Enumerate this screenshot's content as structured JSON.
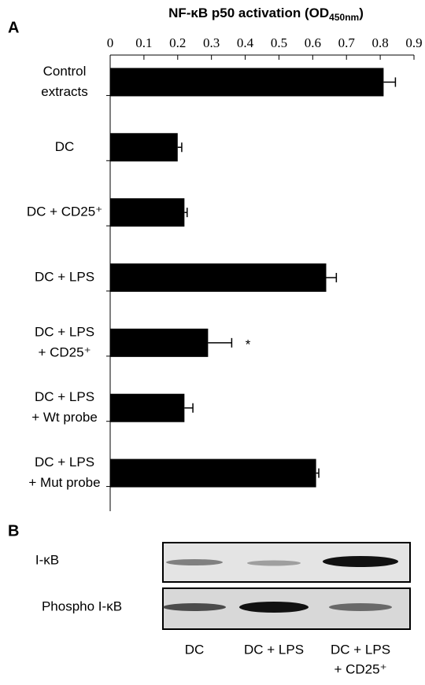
{
  "panels": [
    "A",
    "B"
  ],
  "chart_data": {
    "type": "bar",
    "orientation": "horizontal",
    "title_parts": [
      "NF-κB p50 activation (OD",
      "450nm",
      ")"
    ],
    "categories": [
      [
        "Control",
        "extracts"
      ],
      [
        "DC"
      ],
      [
        "DC + CD25⁺"
      ],
      [
        "DC + LPS"
      ],
      [
        "DC + LPS",
        "+ CD25⁺"
      ],
      [
        "DC + LPS",
        "+ Wt probe"
      ],
      [
        "DC + LPS",
        "+ Mut probe"
      ]
    ],
    "values": [
      0.81,
      0.2,
      0.22,
      0.64,
      0.29,
      0.22,
      0.61
    ],
    "errors": [
      0.035,
      0.012,
      0.008,
      0.03,
      0.07,
      0.025,
      0.008
    ],
    "color": "#000000",
    "xlim": [
      0,
      0.9
    ],
    "xticks": [
      0,
      0.1,
      0.2,
      0.3,
      0.4,
      0.5,
      0.6,
      0.7,
      0.8,
      0.9
    ],
    "annotations": [
      {
        "category_index": 4,
        "text": "*"
      }
    ]
  },
  "blot": {
    "rows": [
      "I-κB",
      "Phospho I-κB"
    ],
    "lanes": [
      [
        "DC"
      ],
      [
        "DC + LPS"
      ],
      [
        "DC + LPS",
        "+ CD25⁺"
      ]
    ]
  }
}
